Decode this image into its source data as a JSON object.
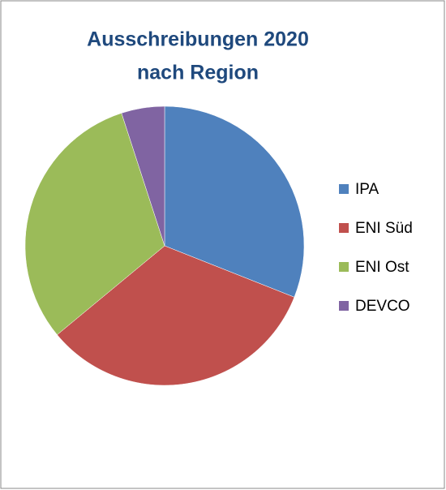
{
  "chart_data": {
    "type": "pie",
    "title": [
      "Ausschreibungen 2020",
      "nach Region"
    ],
    "categories": [
      "IPA",
      "ENI Süd",
      "ENI Ost",
      "DEVCO"
    ],
    "values": [
      31,
      33,
      31,
      5
    ],
    "colors": [
      "#4f81bd",
      "#c0504d",
      "#9bbb59",
      "#8064a2"
    ],
    "legend": "right"
  }
}
